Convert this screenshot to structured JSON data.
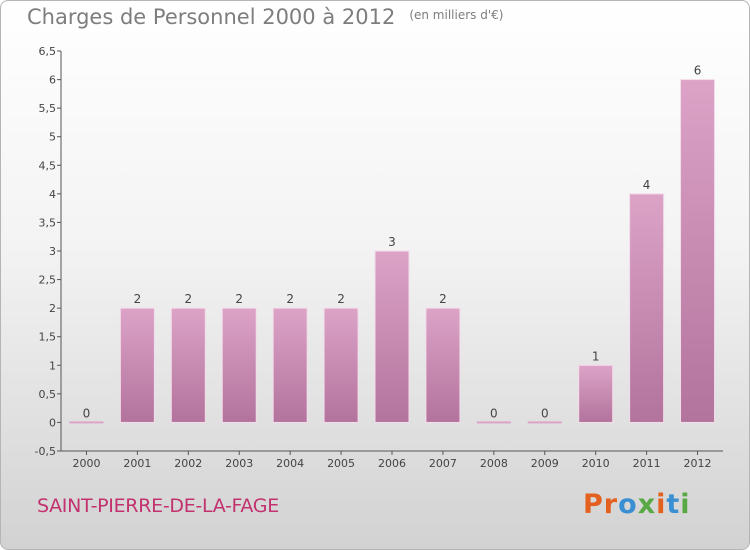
{
  "header": {
    "title": "Charges de Personnel 2000 à 2012",
    "unit": "(en milliers d'€)"
  },
  "footer": {
    "commune": "SAINT-PIERRE-DE-LA-FAGE",
    "logo": "Proxiti"
  },
  "colors": {
    "bar_top": "#dda3c7",
    "bar_bottom": "#b2739c",
    "commune": "#c2326e",
    "logo": [
      "#e3601f",
      "#e3601f",
      "#3a8fd3",
      "#58a944",
      "#e3601f",
      "#3a8fd3",
      "#58a944"
    ]
  },
  "chart_data": {
    "type": "bar",
    "categories": [
      "2000",
      "2001",
      "2002",
      "2003",
      "2004",
      "2005",
      "2006",
      "2007",
      "2008",
      "2009",
      "2010",
      "2011",
      "2012"
    ],
    "values": [
      0,
      2,
      2,
      2,
      2,
      2,
      3,
      2,
      0,
      0,
      1,
      4,
      6
    ],
    "data_labels": [
      "0",
      "2",
      "2",
      "2",
      "2",
      "2",
      "3",
      "2",
      "0",
      "0",
      "1",
      "4",
      "6"
    ],
    "ylim": [
      -0.5,
      6.5
    ],
    "yticks": [
      -0.5,
      0,
      0.5,
      1,
      1.5,
      2,
      2.5,
      3,
      3.5,
      4,
      4.5,
      5,
      5.5,
      6,
      6.5
    ],
    "ytick_labels": [
      "-0,5",
      "0",
      "0,5",
      "1",
      "1,5",
      "2",
      "2,5",
      "3",
      "3,5",
      "4",
      "4,5",
      "5",
      "5,5",
      "6",
      "6,5"
    ],
    "grid": false,
    "xlabel": "",
    "ylabel": ""
  }
}
